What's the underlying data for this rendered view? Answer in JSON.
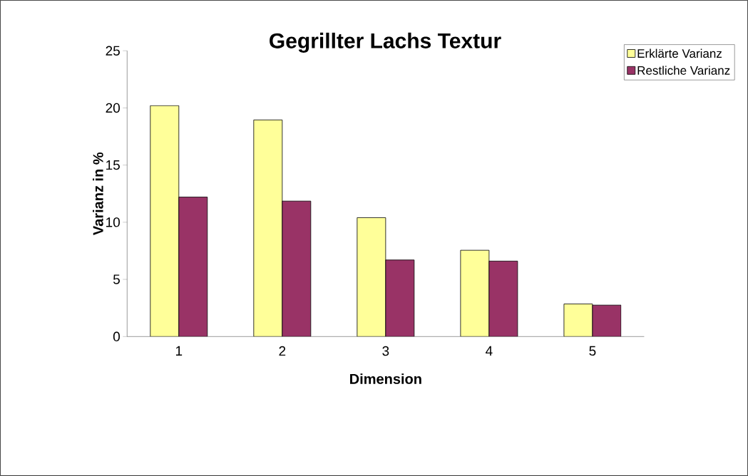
{
  "chart_data": {
    "type": "bar",
    "title": "Gegrillter Lachs Textur",
    "xlabel": "Dimension",
    "ylabel": "Varianz in %",
    "categories": [
      "1",
      "2",
      "3",
      "4",
      "5"
    ],
    "series": [
      {
        "name": "Erklärte Varianz",
        "color": "#ffff99",
        "values": [
          20.2,
          18.95,
          10.4,
          7.55,
          2.85
        ]
      },
      {
        "name": "Restliche Varianz",
        "color": "#993366",
        "values": [
          12.2,
          11.85,
          6.7,
          6.6,
          2.75
        ]
      }
    ],
    "ylim": [
      0,
      25
    ],
    "yticks": [
      0,
      5,
      10,
      15,
      20,
      25
    ],
    "grid": false,
    "legend": "right"
  }
}
